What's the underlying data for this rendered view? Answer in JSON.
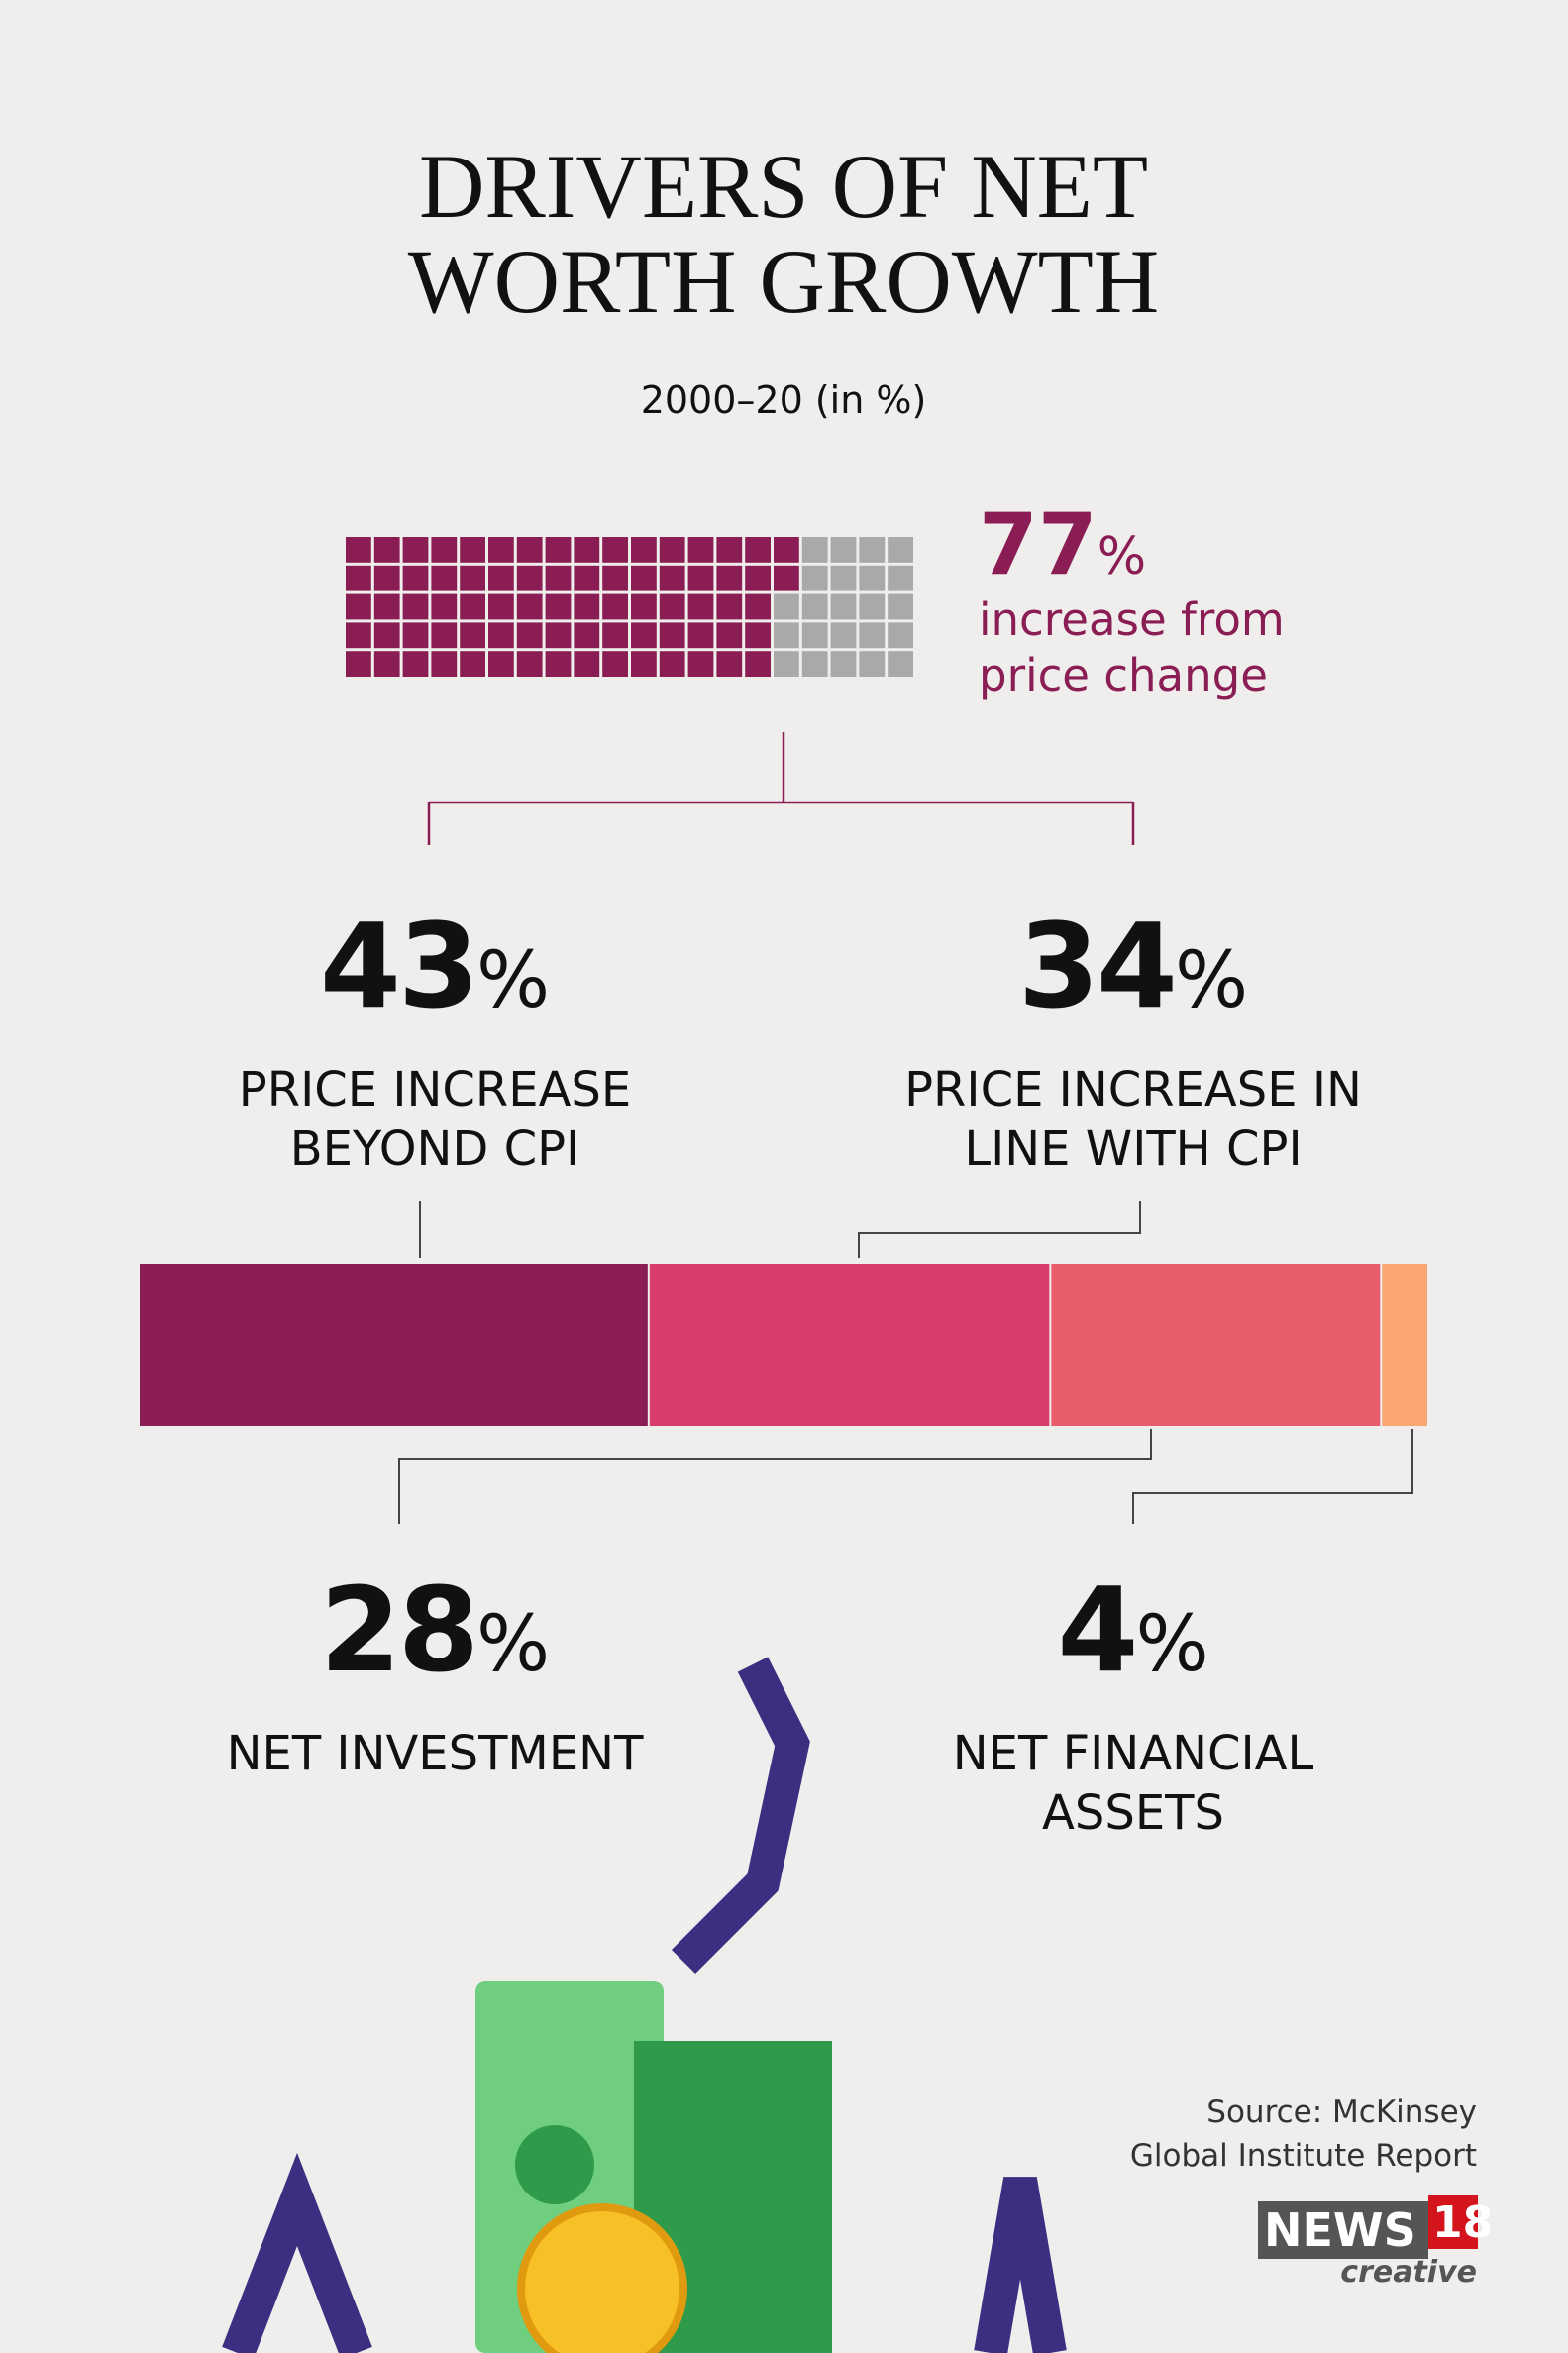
{
  "title": [
    "DRIVERS OF NET",
    "WORTH GROWTH"
  ],
  "subtitle": "2000–20 (in %)",
  "chart_data": [
    {
      "type": "waffle",
      "value": 77,
      "value_label": "77%",
      "caption": [
        "increase from",
        "price change"
      ],
      "color": "#8b1d55",
      "empty_color": "#a9a9a9"
    },
    {
      "type": "stacked-bar",
      "series": [
        {
          "name": "PRICE INCREASE BEYOND CPI",
          "values": [
            43
          ],
          "value_labels": [
            "43%"
          ],
          "color": "#8b1d55"
        },
        {
          "name": "PRICE INCREASE IN LINE WITH CPI",
          "values": [
            34
          ],
          "value_labels": [
            "34%"
          ],
          "color": "#d83c6b"
        },
        {
          "name": "NET INVESTMENT",
          "values": [
            28
          ],
          "value_labels": [
            "28%"
          ],
          "color": "#e85d6a"
        },
        {
          "name": "NET FINANCIAL ASSETS",
          "values": [
            4
          ],
          "value_labels": [
            "4%"
          ],
          "color": "#f9a672"
        }
      ]
    }
  ],
  "source": [
    "Source: McKinsey",
    "Global Institute Report"
  ],
  "brand": {
    "name": "NEWS",
    "number": "18",
    "tagline": "creative"
  }
}
